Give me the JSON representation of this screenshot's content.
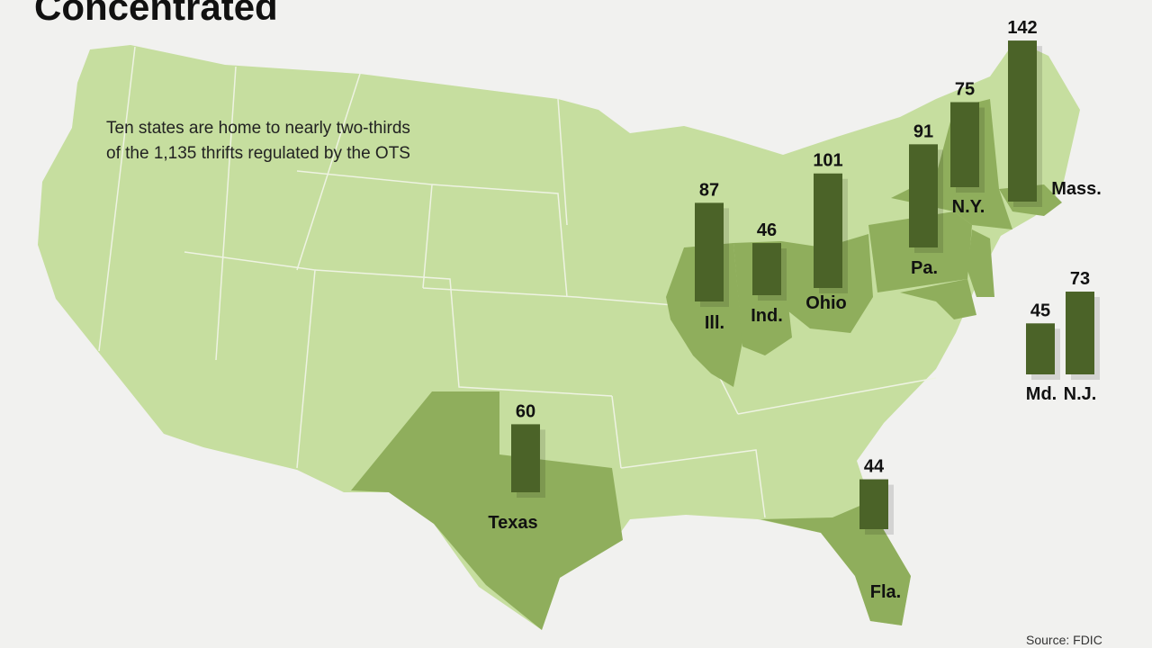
{
  "chart_data": {
    "type": "bar",
    "title": "Concentrated",
    "annotation": [
      "Ten states are home to nearly two-thirds",
      "of the 1,135 thrifts regulated by the OTS"
    ],
    "source": "Source: FDIC",
    "categories": [
      "Ill.",
      "Ind.",
      "Ohio",
      "Pa.",
      "N.Y.",
      "Mass.",
      "Md.",
      "N.J.",
      "Texas",
      "Fla."
    ],
    "values": [
      87,
      46,
      101,
      91,
      75,
      142,
      45,
      73,
      60,
      44
    ],
    "color": "#4b6328"
  }
}
